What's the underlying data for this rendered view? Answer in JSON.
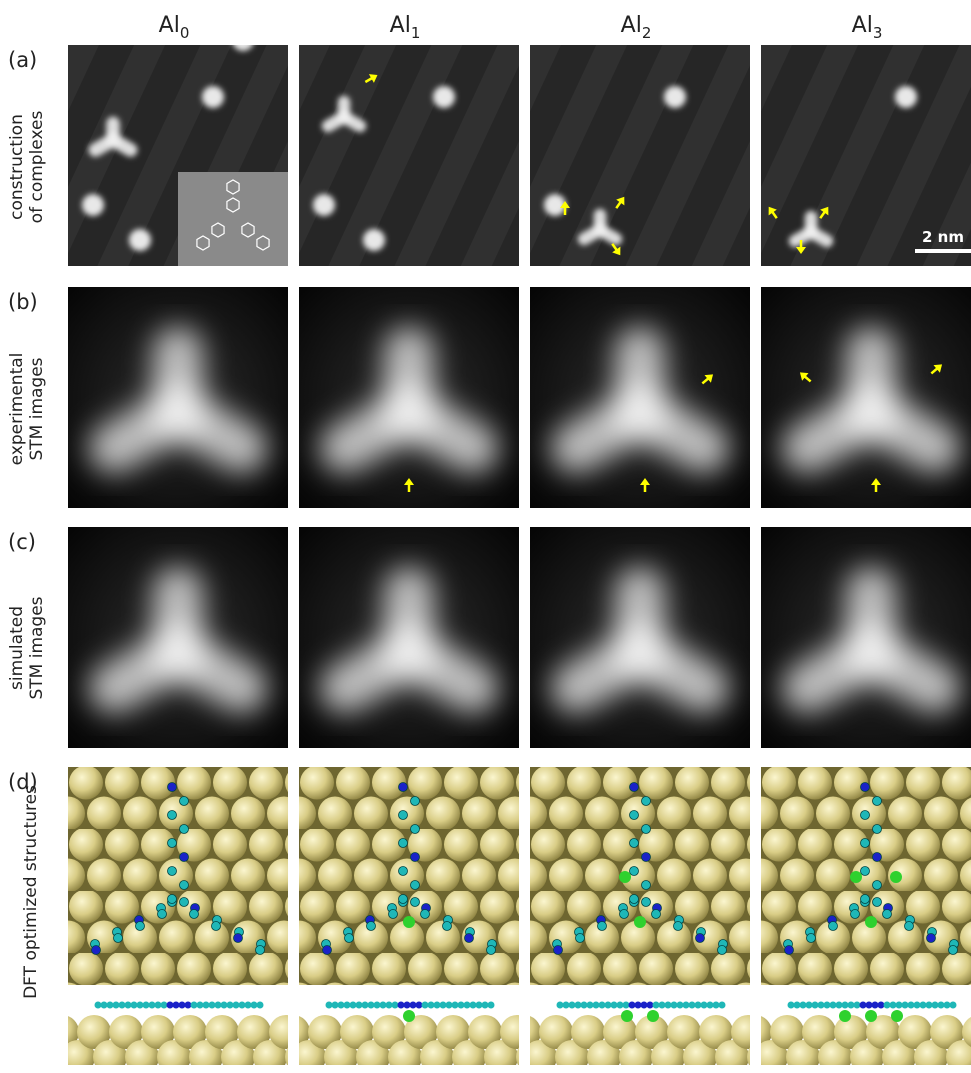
{
  "columns": [
    {
      "base": "Al",
      "sub": "0"
    },
    {
      "base": "Al",
      "sub": "1"
    },
    {
      "base": "Al",
      "sub": "2"
    },
    {
      "base": "Al",
      "sub": "3"
    }
  ],
  "rows": [
    {
      "label": "(a)",
      "lines": [
        "construction",
        "of complexes"
      ]
    },
    {
      "label": "(b)",
      "lines": [
        "experimental",
        "STM images"
      ]
    },
    {
      "label": "(c)",
      "lines": [
        "simulated",
        "STM images"
      ]
    },
    {
      "label": "(d)",
      "lines": [
        "DFT optimized structures"
      ]
    }
  ],
  "scale_bar": {
    "label": "2 nm"
  }
}
